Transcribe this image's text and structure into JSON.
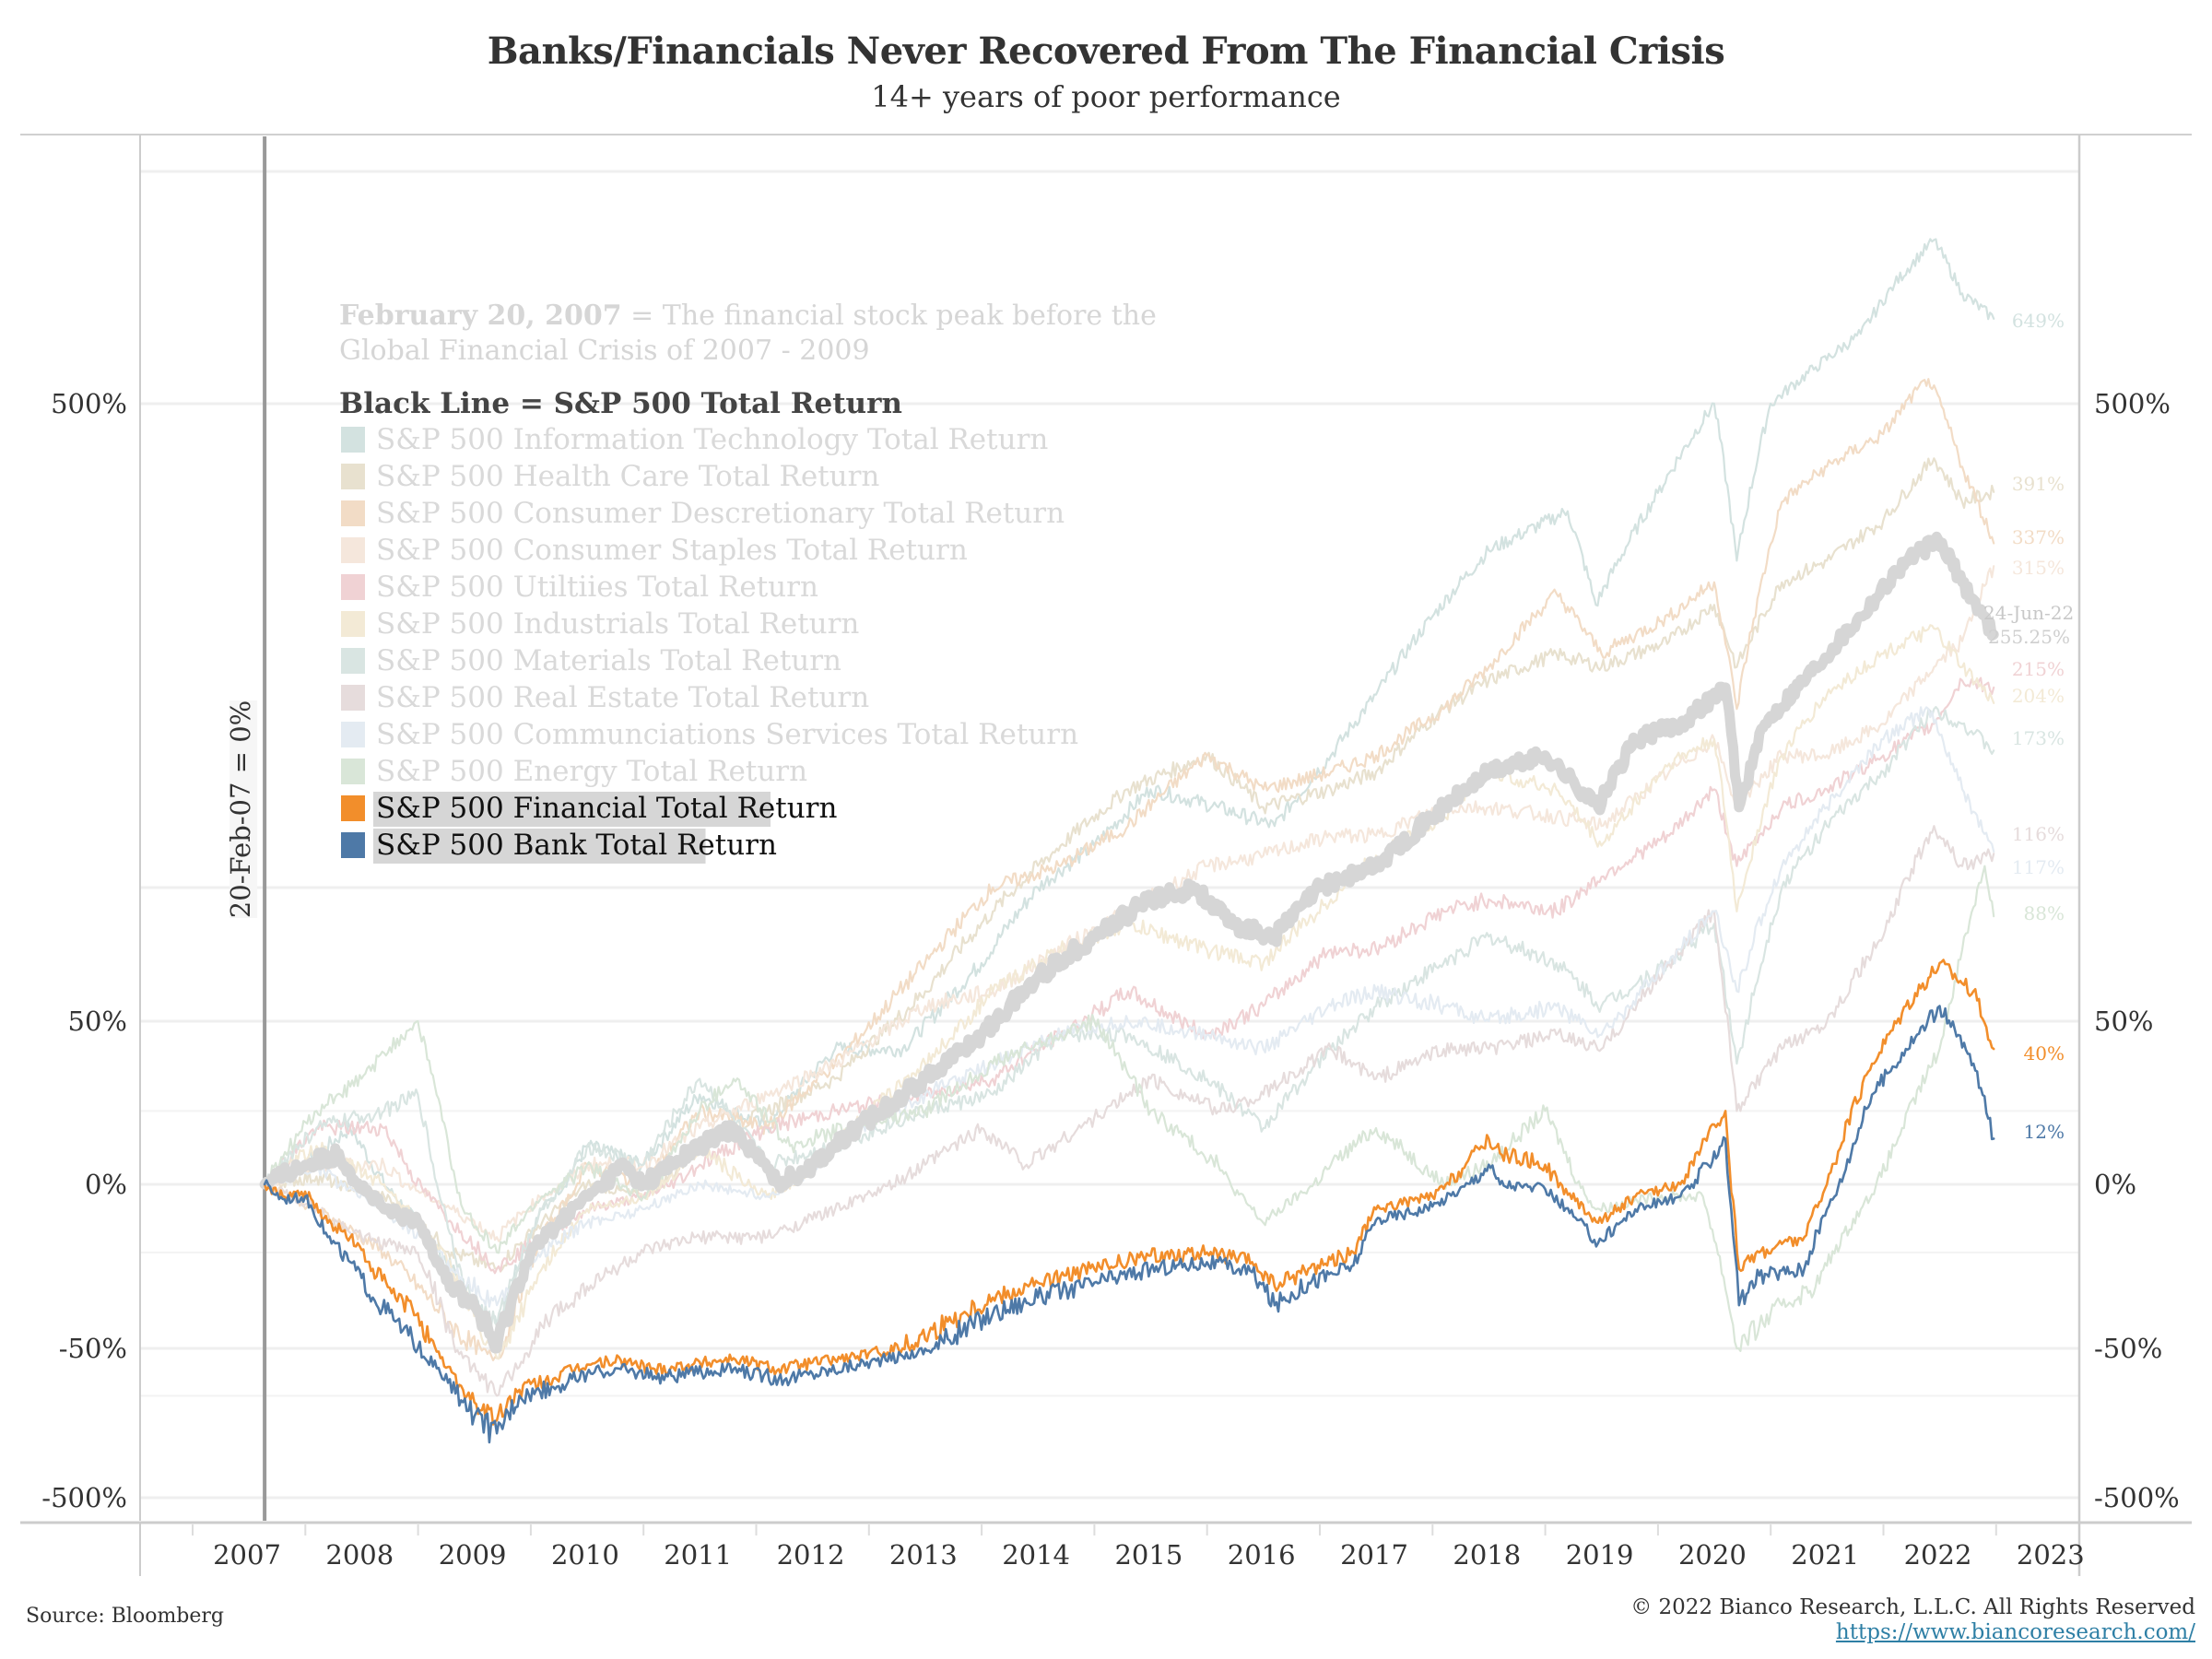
{
  "chart_data": {
    "type": "line",
    "title": "Banks/Financials Never Recovered From The Financial Crisis",
    "subtitle": "14+ years of poor performance",
    "xlabel": "",
    "ylabel": "",
    "y_scale": "symmetric-log percent",
    "x_ticks": [
      "2007",
      "2008",
      "2009",
      "2010",
      "2011",
      "2012",
      "2013",
      "2014",
      "2015",
      "2016",
      "2017",
      "2018",
      "2019",
      "2020",
      "2021",
      "2022",
      "2023"
    ],
    "y_ticks_left": [
      "500%",
      "50%",
      "0%",
      "-50%",
      "-500%"
    ],
    "y_ticks_right": [
      "500%",
      "50%",
      "0%",
      "-50%",
      "-500%"
    ],
    "x_range": [
      2006.9,
      2023
    ],
    "grid": true,
    "reference_line": {
      "date": "20-Feb-07",
      "label": "20-Feb-07 = 0%"
    },
    "annotation": {
      "bold": "February 20, 2007",
      "text_line1": " = The financial stock peak before the",
      "text_line2": "Global Financial Crisis of 2007 - 2009"
    },
    "legend_heading": "Black Line = S&P 500 Total Return",
    "legend_position": "upper-left",
    "end_date_label": "24-Jun-22",
    "series": [
      {
        "name": "S&P 500 Information Technology Total Return",
        "color": "#d3e2e0",
        "highlight": false,
        "end_label": "649%",
        "x": [
          2007.14,
          2007.5,
          2007.9,
          2008.5,
          2009.0,
          2009.2,
          2009.6,
          2010.0,
          2010.5,
          2011.0,
          2011.6,
          2012.2,
          2012.8,
          2013.5,
          2014.0,
          2014.5,
          2015.0,
          2015.6,
          2016.1,
          2016.6,
          2017.0,
          2017.5,
          2018.0,
          2018.7,
          2018.95,
          2019.5,
          2020.0,
          2020.2,
          2020.5,
          2020.9,
          2021.3,
          2021.6,
          2021.95,
          2022.2,
          2022.48
        ],
        "y": [
          0,
          5,
          15,
          -15,
          -40,
          -45,
          -10,
          10,
          5,
          25,
          15,
          40,
          40,
          70,
          100,
          120,
          150,
          140,
          130,
          170,
          210,
          270,
          330,
          370,
          280,
          390,
          500,
          320,
          500,
          560,
          620,
          720,
          820,
          700,
          649
        ]
      },
      {
        "name": "S&P 500 Health Care Total Return",
        "color": "#e8e1cf",
        "highlight": false,
        "end_label": "391%",
        "x": [
          2007.14,
          2007.6,
          2008.2,
          2008.8,
          2009.2,
          2009.6,
          2010.0,
          2010.5,
          2011.0,
          2011.6,
          2012.2,
          2013.0,
          2013.6,
          2014.2,
          2014.8,
          2015.5,
          2016.0,
          2016.6,
          2017.0,
          2017.6,
          2018.0,
          2018.6,
          2019.0,
          2019.6,
          2020.0,
          2020.2,
          2020.6,
          2021.0,
          2021.5,
          2021.95,
          2022.2,
          2022.48
        ],
        "y": [
          0,
          2,
          -5,
          -25,
          -30,
          -15,
          0,
          -5,
          10,
          20,
          30,
          60,
          90,
          120,
          150,
          170,
          140,
          150,
          160,
          200,
          220,
          240,
          230,
          250,
          280,
          230,
          300,
          320,
          360,
          430,
          380,
          391
        ]
      },
      {
        "name": "S&P 500 Consumer Descretionary Total Return",
        "color": "#f2dcc6",
        "highlight": false,
        "end_label": "337%",
        "x": [
          2007.14,
          2007.6,
          2008.2,
          2008.8,
          2009.2,
          2009.6,
          2010.0,
          2010.5,
          2011.0,
          2011.6,
          2012.2,
          2013.0,
          2013.6,
          2014.2,
          2014.8,
          2015.5,
          2016.0,
          2016.6,
          2017.0,
          2017.6,
          2018.0,
          2018.6,
          2019.0,
          2019.6,
          2020.0,
          2020.2,
          2020.6,
          2021.0,
          2021.5,
          2021.9,
          2022.2,
          2022.48
        ],
        "y": [
          0,
          -10,
          -25,
          -45,
          -55,
          -20,
          5,
          0,
          20,
          15,
          35,
          70,
          100,
          110,
          130,
          170,
          150,
          160,
          170,
          200,
          230,
          290,
          240,
          270,
          300,
          200,
          380,
          420,
          460,
          540,
          420,
          337
        ]
      },
      {
        "name": "S&P 500 Consumer Staples Total Return",
        "color": "#f5e7dc",
        "highlight": false,
        "end_label": "315%",
        "x": [
          2007.14,
          2007.6,
          2008.2,
          2008.8,
          2009.2,
          2009.6,
          2010.0,
          2010.5,
          2011.0,
          2011.6,
          2012.2,
          2013.0,
          2013.6,
          2014.2,
          2014.8,
          2015.5,
          2016.0,
          2016.6,
          2017.0,
          2017.6,
          2018.0,
          2018.6,
          2019.0,
          2019.6,
          2020.0,
          2020.2,
          2020.6,
          2021.0,
          2021.5,
          2021.95,
          2022.2,
          2022.48
        ],
        "y": [
          0,
          5,
          5,
          -10,
          -20,
          -5,
          5,
          5,
          15,
          25,
          35,
          55,
          60,
          75,
          90,
          110,
          115,
          125,
          125,
          140,
          140,
          135,
          130,
          160,
          180,
          140,
          170,
          170,
          190,
          230,
          250,
          315
        ]
      },
      {
        "name": "S&P 500 Utiltiies Total Return",
        "color": "#f0d2d4",
        "highlight": false,
        "end_label": "215%",
        "x": [
          2007.14,
          2007.6,
          2008.2,
          2008.8,
          2009.2,
          2009.6,
          2010.0,
          2010.5,
          2011.0,
          2011.6,
          2012.2,
          2013.0,
          2013.6,
          2014.2,
          2014.8,
          2015.5,
          2016.0,
          2016.6,
          2017.0,
          2017.6,
          2018.0,
          2018.6,
          2019.0,
          2019.6,
          2020.0,
          2020.2,
          2020.6,
          2021.0,
          2021.5,
          2021.95,
          2022.2,
          2022.48
        ],
        "y": [
          0,
          15,
          15,
          -15,
          -30,
          -20,
          -10,
          -5,
          5,
          15,
          20,
          25,
          30,
          45,
          60,
          45,
          55,
          75,
          75,
          90,
          95,
          90,
          105,
          125,
          150,
          110,
          140,
          150,
          170,
          190,
          220,
          215
        ]
      },
      {
        "name": "S&P 500 Industrials Total Return",
        "color": "#f3ead6",
        "highlight": false,
        "end_label": "204%",
        "x": [
          2007.14,
          2007.6,
          2008.2,
          2008.8,
          2009.2,
          2009.6,
          2010.0,
          2010.5,
          2011.0,
          2011.6,
          2012.2,
          2013.0,
          2013.6,
          2014.2,
          2014.8,
          2015.5,
          2016.0,
          2016.6,
          2017.0,
          2017.6,
          2018.0,
          2018.6,
          2019.0,
          2019.6,
          2020.0,
          2020.2,
          2020.6,
          2021.0,
          2021.5,
          2021.95,
          2022.2,
          2022.48
        ],
        "y": [
          0,
          10,
          0,
          -30,
          -55,
          -30,
          -10,
          -5,
          10,
          -5,
          10,
          35,
          60,
          75,
          85,
          75,
          70,
          95,
          115,
          135,
          160,
          150,
          120,
          165,
          180,
          90,
          170,
          210,
          240,
          260,
          230,
          204
        ]
      },
      {
        "name": "S&P 500 Materials Total Return",
        "color": "#d9e5e2",
        "highlight": false,
        "end_label": "173%",
        "x": [
          2007.14,
          2007.6,
          2008.2,
          2008.5,
          2008.9,
          2009.2,
          2009.6,
          2010.0,
          2010.5,
          2011.0,
          2011.6,
          2012.2,
          2013.0,
          2013.6,
          2014.2,
          2014.8,
          2015.5,
          2016.0,
          2016.6,
          2017.0,
          2017.6,
          2018.0,
          2018.6,
          2019.0,
          2019.6,
          2020.0,
          2020.2,
          2020.6,
          2021.0,
          2021.5,
          2021.95,
          2022.2,
          2022.48
        ],
        "y": [
          0,
          15,
          20,
          25,
          -35,
          -45,
          -10,
          10,
          5,
          30,
          5,
          10,
          20,
          25,
          45,
          45,
          30,
          15,
          40,
          55,
          70,
          80,
          70,
          55,
          70,
          85,
          35,
          100,
          130,
          160,
          200,
          190,
          173
        ]
      },
      {
        "name": "S&P 500 Real Estate Total Return",
        "color": "#e6dcdc",
        "highlight": false,
        "end_label": "116%",
        "x": [
          2007.14,
          2007.6,
          2008.0,
          2008.5,
          2008.9,
          2009.2,
          2009.6,
          2010.0,
          2010.5,
          2011.0,
          2011.6,
          2012.2,
          2013.0,
          2013.5,
          2013.9,
          2014.6,
          2015.0,
          2015.6,
          2016.0,
          2016.6,
          2017.0,
          2017.6,
          2018.0,
          2018.6,
          2019.0,
          2019.6,
          2020.0,
          2020.2,
          2020.6,
          2021.0,
          2021.5,
          2021.95,
          2022.2,
          2022.48
        ],
        "y": [
          0,
          -10,
          -20,
          -25,
          -55,
          -70,
          -45,
          -35,
          -25,
          -20,
          -20,
          -10,
          5,
          15,
          5,
          20,
          30,
          20,
          25,
          40,
          30,
          40,
          40,
          45,
          40,
          70,
          90,
          20,
          40,
          50,
          80,
          130,
          110,
          116
        ]
      },
      {
        "name": "S&P 500 Communciations Services Total Return",
        "color": "#e4ebf2",
        "highlight": false,
        "end_label": "117%",
        "x": [
          2007.14,
          2007.6,
          2008.2,
          2008.8,
          2009.2,
          2009.6,
          2010.0,
          2010.5,
          2011.0,
          2011.6,
          2012.2,
          2013.0,
          2013.6,
          2014.2,
          2014.8,
          2015.5,
          2016.0,
          2016.6,
          2017.0,
          2017.6,
          2018.0,
          2018.6,
          2019.0,
          2019.6,
          2020.0,
          2020.2,
          2020.6,
          2021.0,
          2021.5,
          2021.9,
          2022.2,
          2022.48
        ],
        "y": [
          0,
          5,
          -10,
          -30,
          -40,
          -25,
          -15,
          -10,
          0,
          -5,
          10,
          25,
          35,
          45,
          50,
          45,
          40,
          55,
          60,
          55,
          50,
          55,
          45,
          70,
          90,
          60,
          110,
          140,
          180,
          200,
          150,
          117
        ]
      },
      {
        "name": "S&P 500 Energy Total Return",
        "color": "#d9e6d8",
        "highlight": false,
        "end_label": "88%",
        "x": [
          2007.14,
          2007.6,
          2008.0,
          2008.5,
          2008.9,
          2009.2,
          2009.6,
          2010.0,
          2010.5,
          2011.0,
          2011.3,
          2011.8,
          2012.3,
          2013.0,
          2013.6,
          2014.2,
          2014.5,
          2015.0,
          2015.6,
          2016.0,
          2016.6,
          2017.0,
          2017.6,
          2018.0,
          2018.5,
          2018.95,
          2019.5,
          2019.9,
          2020.2,
          2020.6,
          2020.9,
          2021.3,
          2021.6,
          2022.0,
          2022.4,
          2022.48
        ],
        "y": [
          0,
          20,
          30,
          50,
          -10,
          -25,
          -5,
          5,
          -5,
          20,
          30,
          10,
          15,
          20,
          35,
          45,
          50,
          20,
          5,
          -15,
          5,
          15,
          0,
          5,
          20,
          -10,
          -5,
          -5,
          -50,
          -40,
          -35,
          -10,
          10,
          40,
          110,
          88
        ]
      },
      {
        "name": "S&P 500 Total Return",
        "color": "#d6d6d6",
        "highlight": false,
        "thick": true,
        "end_label": "255.25%",
        "x": [
          2007.14,
          2007.5,
          2007.8,
          2008.2,
          2008.5,
          2008.8,
          2009.0,
          2009.2,
          2009.5,
          2010.0,
          2010.3,
          2010.5,
          2011.0,
          2011.3,
          2011.7,
          2012.0,
          2012.4,
          2013.0,
          2013.5,
          2014.0,
          2014.5,
          2015.0,
          2015.4,
          2015.7,
          2016.1,
          2016.5,
          2017.0,
          2017.5,
          2018.0,
          2018.5,
          2018.97,
          2019.3,
          2019.7,
          2020.1,
          2020.22,
          2020.45,
          2020.9,
          2021.3,
          2021.7,
          2021.99,
          2022.2,
          2022.48
        ],
        "y": [
          0,
          5,
          8,
          -10,
          -15,
          -35,
          -40,
          -50,
          -25,
          -5,
          5,
          0,
          10,
          15,
          0,
          5,
          15,
          30,
          45,
          65,
          80,
          95,
          100,
          85,
          80,
          100,
          110,
          135,
          160,
          170,
          140,
          180,
          190,
          215,
          140,
          190,
          230,
          270,
          320,
          340,
          300,
          255.25
        ]
      },
      {
        "name": "S&P 500 Financial Total Return",
        "color": "#f28e2b",
        "highlight": true,
        "end_label": "40%",
        "x": [
          2007.14,
          2007.3,
          2007.5,
          2007.7,
          2007.9,
          2008.1,
          2008.3,
          2008.5,
          2008.7,
          2008.9,
          2009.0,
          2009.2,
          2009.4,
          2009.7,
          2010.0,
          2010.3,
          2010.6,
          2010.9,
          2011.3,
          2011.7,
          2012.0,
          2012.4,
          2012.8,
          2013.2,
          2013.6,
          2014.0,
          2014.5,
          2015.0,
          2015.5,
          2015.9,
          2016.1,
          2016.4,
          2016.8,
          2017.0,
          2017.5,
          2018.0,
          2018.1,
          2018.5,
          2018.97,
          2019.3,
          2019.7,
          2020.1,
          2020.22,
          2020.4,
          2020.8,
          2021.0,
          2021.4,
          2021.7,
          2022.0,
          2022.3,
          2022.48
        ],
        "y": [
          0,
          -5,
          -3,
          -15,
          -20,
          -30,
          -38,
          -42,
          -55,
          -68,
          -72,
          -77,
          -68,
          -64,
          -58,
          -56,
          -60,
          -58,
          -55,
          -60,
          -57,
          -54,
          -50,
          -44,
          -38,
          -34,
          -30,
          -26,
          -25,
          -28,
          -35,
          -30,
          -25,
          -10,
          -5,
          12,
          8,
          5,
          -15,
          -5,
          0,
          20,
          -30,
          -25,
          -20,
          0,
          35,
          55,
          70,
          60,
          40
        ]
      },
      {
        "name": "S&P 500 Bank Total Return",
        "color": "#4e79a7",
        "highlight": true,
        "end_label": "12%",
        "x": [
          2007.14,
          2007.3,
          2007.5,
          2007.7,
          2007.9,
          2008.1,
          2008.3,
          2008.5,
          2008.7,
          2008.9,
          2009.0,
          2009.2,
          2009.4,
          2009.7,
          2010.0,
          2010.3,
          2010.6,
          2010.9,
          2011.3,
          2011.7,
          2012.0,
          2012.4,
          2012.8,
          2013.2,
          2013.6,
          2014.0,
          2014.5,
          2015.0,
          2015.5,
          2015.9,
          2016.1,
          2016.4,
          2016.8,
          2017.0,
          2017.5,
          2018.0,
          2018.1,
          2018.5,
          2018.97,
          2019.3,
          2019.7,
          2020.1,
          2020.22,
          2020.4,
          2020.8,
          2021.0,
          2021.4,
          2021.7,
          2022.0,
          2022.3,
          2022.48
        ],
        "y": [
          0,
          -6,
          -5,
          -20,
          -28,
          -38,
          -44,
          -50,
          -62,
          -72,
          -76,
          -80,
          -70,
          -67,
          -62,
          -60,
          -63,
          -62,
          -60,
          -64,
          -62,
          -58,
          -54,
          -48,
          -42,
          -38,
          -34,
          -30,
          -28,
          -31,
          -40,
          -34,
          -29,
          -14,
          -9,
          5,
          0,
          -2,
          -22,
          -10,
          -5,
          12,
          -40,
          -32,
          -30,
          -10,
          25,
          40,
          55,
          35,
          12
        ]
      }
    ]
  },
  "footer": {
    "source": "Source: Bloomberg",
    "copyright": "© 2022 Bianco Research, L.L.C. All Rights Reserved",
    "url": "https://www.biancoresearch.com/"
  }
}
